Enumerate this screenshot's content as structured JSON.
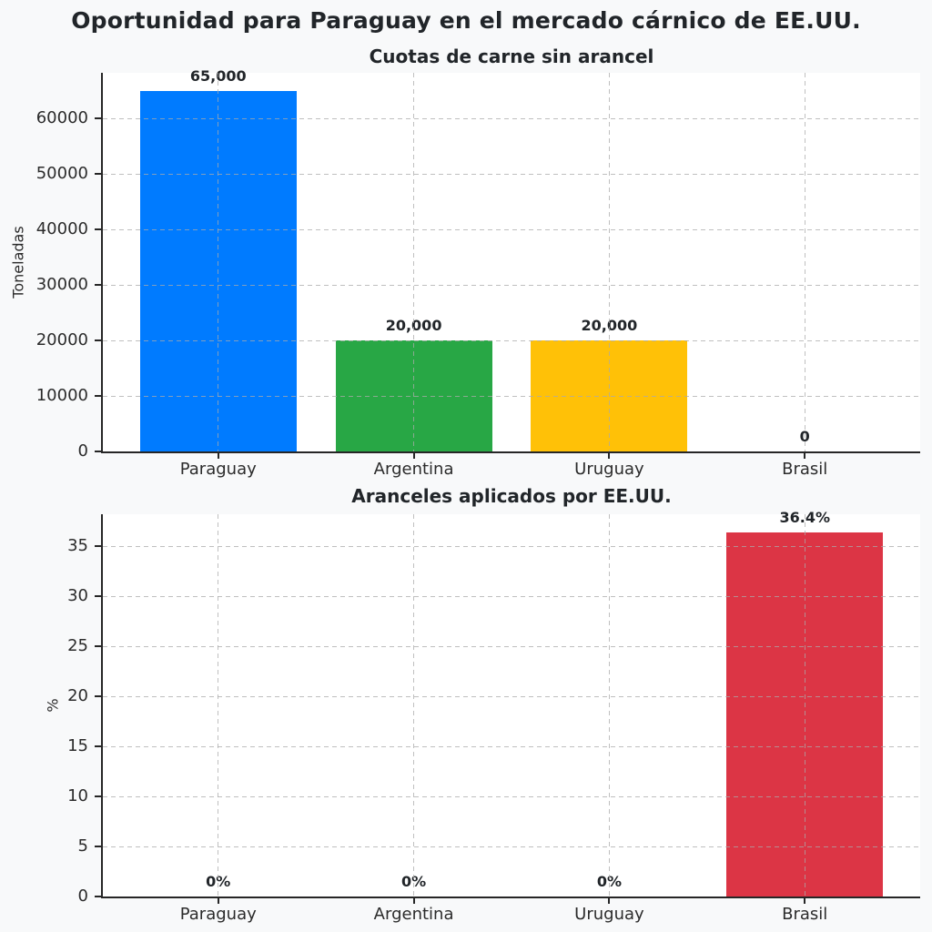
{
  "figure": {
    "title": "Oportunidad para Paraguay en el mercado cárnico de EE.UU.",
    "background_color": "#f8f9fa",
    "text_color": "#212529"
  },
  "chart_data": [
    {
      "type": "bar",
      "title": "Cuotas de carne sin arancel",
      "ylabel": "Toneladas",
      "xlabel": "",
      "categories": [
        "Paraguay",
        "Argentina",
        "Uruguay",
        "Brasil"
      ],
      "values": [
        65000,
        20000,
        20000,
        0
      ],
      "value_labels": [
        "65,000",
        "20,000",
        "20,000",
        "0"
      ],
      "bar_colors": [
        "#007bff",
        "#28a745",
        "#ffc107",
        "#dc3545"
      ],
      "yticks": [
        0,
        10000,
        20000,
        30000,
        40000,
        50000,
        60000
      ],
      "ytick_labels": [
        "0",
        "10000",
        "20000",
        "30000",
        "40000",
        "50000",
        "60000"
      ],
      "ylim": [
        0,
        68250
      ],
      "grid": "both, dashed",
      "legend_position": "none"
    },
    {
      "type": "bar",
      "title": "Aranceles aplicados por EE.UU.",
      "ylabel": "%",
      "xlabel": "",
      "categories": [
        "Paraguay",
        "Argentina",
        "Uruguay",
        "Brasil"
      ],
      "values": [
        0,
        0,
        0,
        36.4
      ],
      "value_labels": [
        "0%",
        "0%",
        "0%",
        "36.4%"
      ],
      "bar_colors": [
        "#007bff",
        "#28a745",
        "#ffc107",
        "#dc3545"
      ],
      "yticks": [
        0,
        5,
        10,
        15,
        20,
        25,
        30,
        35
      ],
      "ytick_labels": [
        "0",
        "5",
        "10",
        "15",
        "20",
        "25",
        "30",
        "35"
      ],
      "ylim": [
        0,
        38.2
      ],
      "grid": "both, dashed",
      "legend_position": "none"
    }
  ]
}
